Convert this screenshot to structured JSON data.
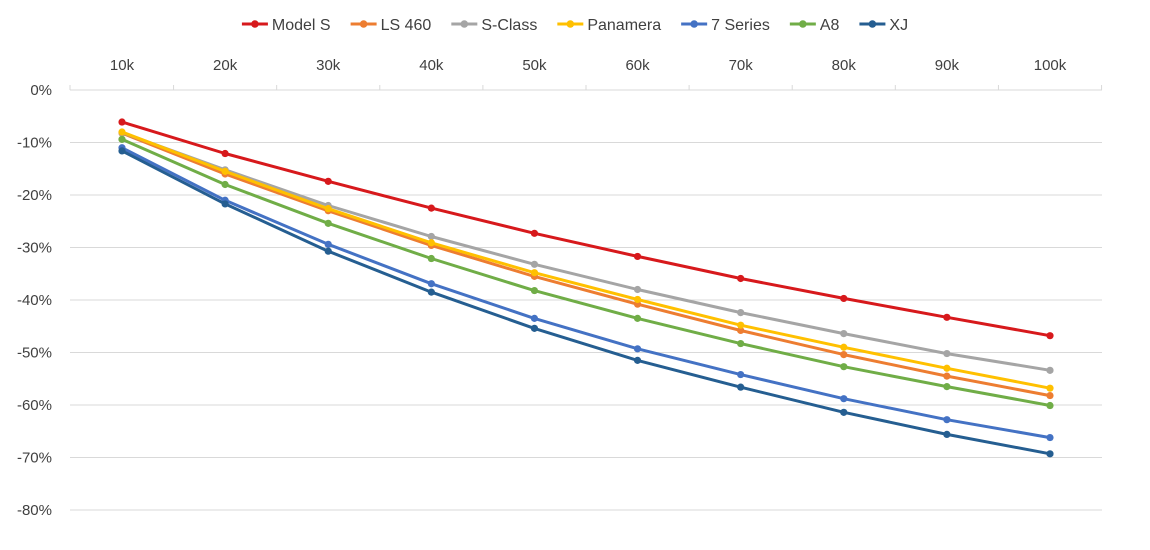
{
  "chart_data": {
    "type": "line",
    "title": "",
    "xlabel": "",
    "ylabel": "",
    "categories": [
      "10k",
      "20k",
      "30k",
      "40k",
      "50k",
      "60k",
      "70k",
      "80k",
      "90k",
      "100k"
    ],
    "x_axis_position": "top",
    "ylim": [
      -80,
      0
    ],
    "y_ticks": [
      0,
      -10,
      -20,
      -30,
      -40,
      -50,
      -60,
      -70,
      -80
    ],
    "y_tick_labels": [
      "0%",
      "-10%",
      "-20%",
      "-30%",
      "-40%",
      "-50%",
      "-60%",
      "-70%",
      "-80%"
    ],
    "grid": true,
    "legend_position": "top",
    "series": [
      {
        "name": "Model S",
        "color": "#d7191c",
        "values": [
          -6.1,
          -12.1,
          -17.4,
          -22.5,
          -27.3,
          -31.7,
          -35.9,
          -39.7,
          -43.3,
          -46.8
        ]
      },
      {
        "name": "LS 460",
        "color": "#ed7d31",
        "values": [
          -8.2,
          -16.0,
          -23.0,
          -29.6,
          -35.5,
          -40.8,
          -45.8,
          -50.4,
          -54.5,
          -58.2
        ]
      },
      {
        "name": "S-Class",
        "color": "#a5a5a5",
        "values": [
          -8.1,
          -15.2,
          -22.0,
          -27.9,
          -33.2,
          -38.0,
          -42.4,
          -46.4,
          -50.2,
          -53.4
        ]
      },
      {
        "name": "Panamera",
        "color": "#ffc000",
        "values": [
          -8.0,
          -15.5,
          -22.6,
          -29.1,
          -34.8,
          -39.9,
          -44.8,
          -49.0,
          -53.0,
          -56.8
        ]
      },
      {
        "name": "7 Series",
        "color": "#4472c4",
        "values": [
          -11.0,
          -21.0,
          -29.4,
          -36.9,
          -43.5,
          -49.3,
          -54.2,
          -58.8,
          -62.8,
          -66.2
        ]
      },
      {
        "name": "A8",
        "color": "#70ad47",
        "values": [
          -9.4,
          -18.0,
          -25.4,
          -32.1,
          -38.2,
          -43.5,
          -48.3,
          -52.7,
          -56.5,
          -60.1
        ]
      },
      {
        "name": "XJ",
        "color": "#255e91",
        "values": [
          -11.6,
          -21.7,
          -30.7,
          -38.5,
          -45.4,
          -51.5,
          -56.6,
          -61.4,
          -65.6,
          -69.3
        ]
      }
    ]
  }
}
